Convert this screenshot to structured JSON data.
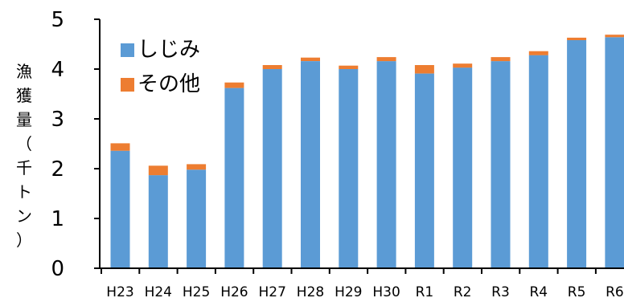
{
  "chart_data": {
    "type": "bar",
    "stacked": true,
    "title": "",
    "xlabel": "",
    "ylabel": "漁獲量（千トン）",
    "ylim": [
      0,
      5
    ],
    "yticks": [
      "0",
      "1",
      "2",
      "3",
      "4",
      "5"
    ],
    "grid": false,
    "legend_position": "top-left",
    "categories": [
      "H23",
      "H24",
      "H25",
      "H26",
      "H27",
      "H28",
      "H29",
      "H30",
      "R1",
      "R2",
      "R3",
      "R4",
      "R5",
      "R6"
    ],
    "series": [
      {
        "name": "しじみ",
        "color": "#5B9BD5",
        "values": [
          2.36,
          1.87,
          1.98,
          3.62,
          4.0,
          4.16,
          4.0,
          4.16,
          3.91,
          4.03,
          4.16,
          4.28,
          4.58,
          4.64
        ]
      },
      {
        "name": "その他",
        "color": "#ED7D31",
        "values": [
          0.15,
          0.19,
          0.11,
          0.11,
          0.08,
          0.07,
          0.07,
          0.08,
          0.17,
          0.08,
          0.08,
          0.08,
          0.05,
          0.05
        ]
      }
    ]
  }
}
